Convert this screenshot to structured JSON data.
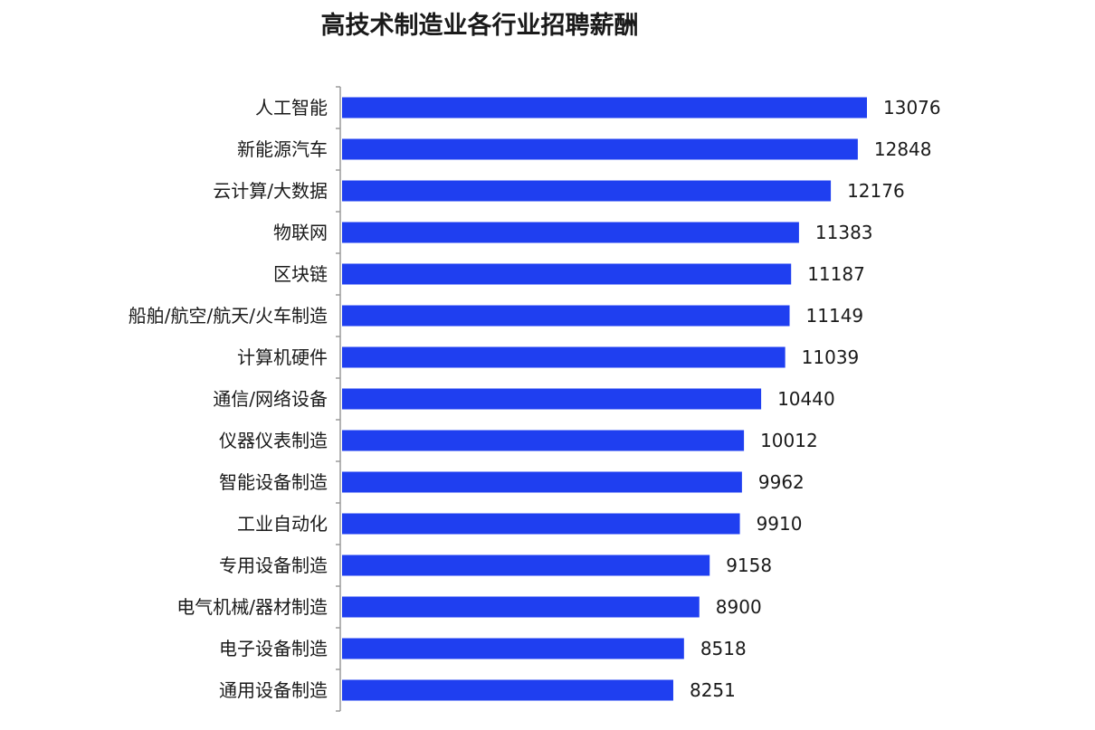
{
  "chart_data": {
    "type": "bar",
    "orientation": "horizontal",
    "title": "高技术制造业各行业招聘薪酬",
    "categories": [
      "人工智能",
      "新能源汽车",
      "云计算/大数据",
      "物联网",
      "区块链",
      "船舶/航空/航天/火车制造",
      "计算机硬件",
      "通信/网络设备",
      "仪器仪表制造",
      "智能设备制造",
      "工业自动化",
      "专用设备制造",
      "电气机械/器材制造",
      "电子设备制造",
      "通用设备制造"
    ],
    "values": [
      13076,
      12848,
      12176,
      11383,
      11187,
      11149,
      11039,
      10440,
      10012,
      9962,
      9910,
      9158,
      8900,
      8518,
      8251
    ],
    "xlabel": "",
    "ylabel": "",
    "color": "#1f3ff0",
    "grid": false,
    "legend": "none"
  }
}
